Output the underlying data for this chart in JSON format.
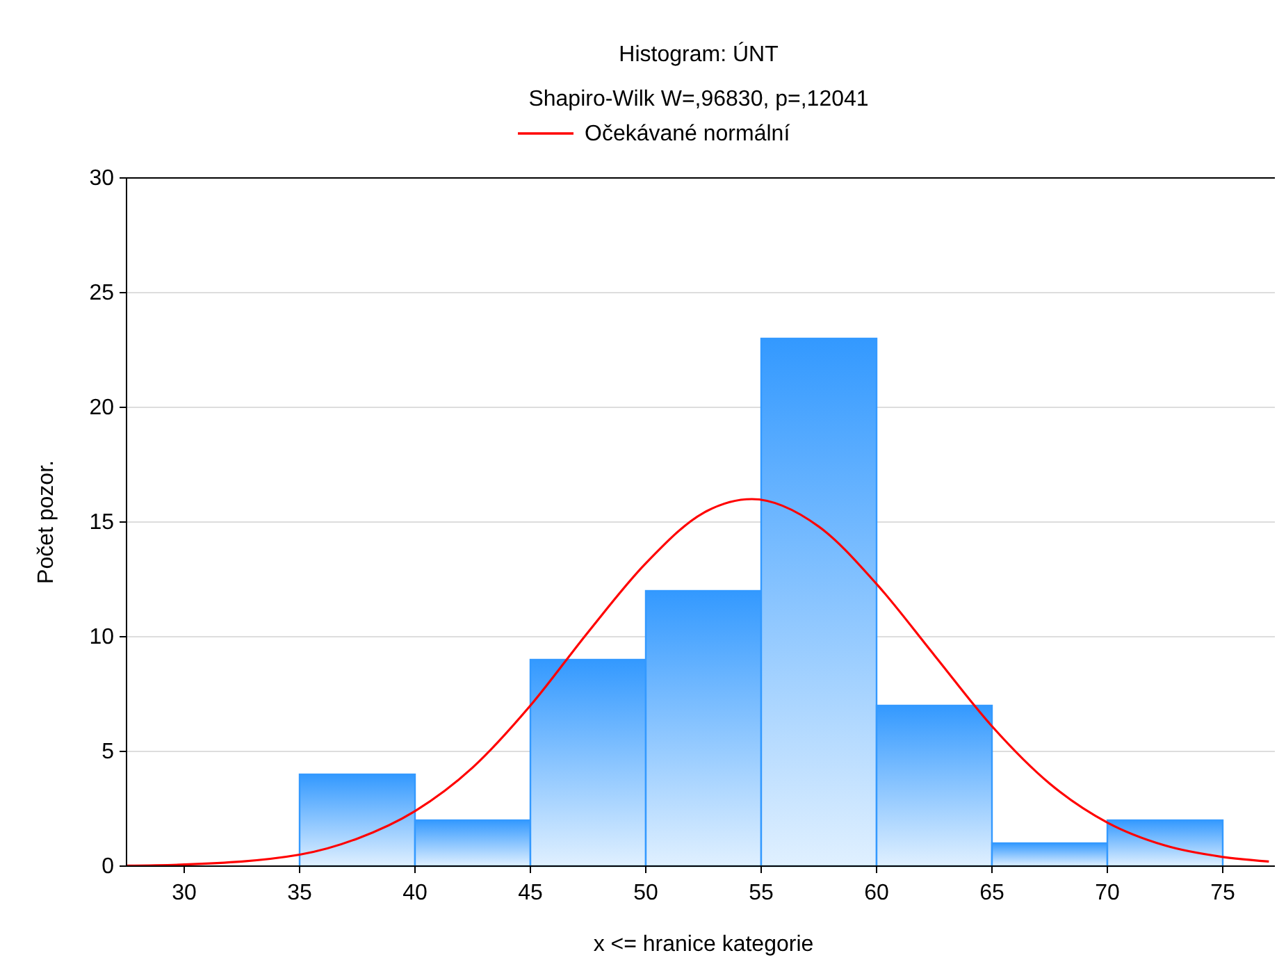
{
  "chart_data": {
    "type": "histogram",
    "title": "Histogram: ÚNT",
    "subtitle": "Shapiro-Wilk W=,96830, p=,12041",
    "xlabel": "x <= hranice kategorie",
    "ylabel": "Počet pozor.",
    "bins": [
      35,
      40,
      45,
      50,
      55,
      60,
      65,
      70,
      75
    ],
    "values": [
      4,
      2,
      9,
      12,
      23,
      7,
      1,
      2
    ],
    "color": "#3399ff",
    "series": [
      {
        "type": "line",
        "name": "Očekávané normální",
        "color": "#ff0000",
        "x": [
          27.5,
          30,
          35,
          37.5,
          40,
          42.5,
          45,
          47.5,
          50,
          52.5,
          54.6,
          57.5,
          60,
          62.5,
          65,
          67.5,
          70,
          72.5,
          75,
          77
        ],
        "values": [
          0.02,
          0.07,
          0.5,
          1.2,
          2.4,
          4.3,
          7,
          10.2,
          13.2,
          15.4,
          16,
          14.8,
          12.3,
          9.2,
          6.1,
          3.6,
          1.9,
          0.9,
          0.4,
          0.2
        ]
      }
    ],
    "xlim": [
      27.5,
      77.5
    ],
    "xticks": [
      30,
      35,
      40,
      45,
      50,
      55,
      60,
      65,
      70,
      75
    ],
    "ylim": [
      0,
      30
    ],
    "yticks": [
      0,
      5,
      10,
      15,
      20,
      25,
      30
    ],
    "grid": "y",
    "legend": "top"
  }
}
